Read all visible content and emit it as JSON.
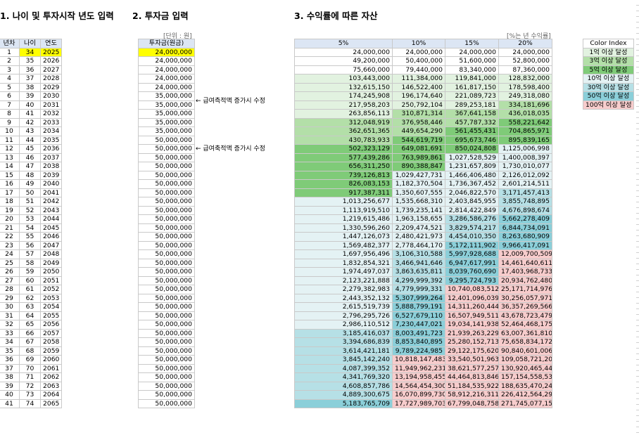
{
  "titles": {
    "t1": "1. 나이 및 투자시작 년도 입력",
    "t2": "2. 투자금 입력",
    "t3": "3. 수익률에 따른 자산"
  },
  "notes": {
    "unit": "[단위 : 원]",
    "rate": "[%는 년 수익률]"
  },
  "side_notes": {
    "n1": "← 급여측적액 증가시 수정",
    "n2": "← 급여축적액 증가시 수정"
  },
  "headers": {
    "col1": [
      "년차",
      "나이",
      "연도"
    ],
    "col2": "투자금(원금)",
    "col3": [
      "5%",
      "10%",
      "15%",
      "20%"
    ]
  },
  "rows": [
    [
      "1",
      "34",
      "2025",
      "24,000,000",
      "24,000,000",
      "24,000,000",
      "24,000,000",
      "24,000,000"
    ],
    [
      "2",
      "35",
      "2026",
      "24,000,000",
      "49,200,000",
      "50,400,000",
      "51,600,000",
      "52,800,000"
    ],
    [
      "3",
      "36",
      "2027",
      "24,000,000",
      "75,660,000",
      "79,440,000",
      "83,340,000",
      "87,360,000"
    ],
    [
      "4",
      "37",
      "2028",
      "24,000,000",
      "103,443,000",
      "111,384,000",
      "119,841,000",
      "128,832,000"
    ],
    [
      "5",
      "38",
      "2029",
      "24,000,000",
      "132,615,150",
      "146,522,400",
      "161,817,150",
      "178,598,400"
    ],
    [
      "6",
      "39",
      "2030",
      "35,000,000",
      "174,245,908",
      "196,174,640",
      "221,089,723",
      "249,318,080"
    ],
    [
      "7",
      "40",
      "2031",
      "35,000,000",
      "217,958,203",
      "250,792,104",
      "289,253,181",
      "334,181,696"
    ],
    [
      "8",
      "41",
      "2032",
      "35,000,000",
      "263,856,113",
      "310,871,314",
      "367,641,158",
      "436,018,035"
    ],
    [
      "9",
      "42",
      "2033",
      "35,000,000",
      "312,048,919",
      "376,958,446",
      "457,787,332",
      "558,221,642"
    ],
    [
      "10",
      "43",
      "2034",
      "35,000,000",
      "362,651,365",
      "449,654,290",
      "561,455,431",
      "704,865,971"
    ],
    [
      "11",
      "44",
      "2035",
      "50,000,000",
      "430,783,933",
      "544,619,719",
      "695,673,746",
      "895,839,165"
    ],
    [
      "12",
      "45",
      "2036",
      "50,000,000",
      "502,323,129",
      "649,081,691",
      "850,024,808",
      "1,125,006,998"
    ],
    [
      "13",
      "46",
      "2037",
      "50,000,000",
      "577,439,286",
      "763,989,861",
      "1,027,528,529",
      "1,400,008,397"
    ],
    [
      "14",
      "47",
      "2038",
      "50,000,000",
      "656,311,250",
      "890,388,847",
      "1,231,657,809",
      "1,730,010,077"
    ],
    [
      "15",
      "48",
      "2039",
      "50,000,000",
      "739,126,813",
      "1,029,427,731",
      "1,466,406,480",
      "2,126,012,092"
    ],
    [
      "16",
      "49",
      "2040",
      "50,000,000",
      "826,083,153",
      "1,182,370,504",
      "1,736,367,452",
      "2,601,214,511"
    ],
    [
      "17",
      "50",
      "2041",
      "50,000,000",
      "917,387,311",
      "1,350,607,555",
      "2,046,822,570",
      "3,171,457,413"
    ],
    [
      "18",
      "51",
      "2042",
      "50,000,000",
      "1,013,256,677",
      "1,535,668,310",
      "2,403,845,955",
      "3,855,748,895"
    ],
    [
      "19",
      "52",
      "2043",
      "50,000,000",
      "1,113,919,510",
      "1,739,235,141",
      "2,814,422,849",
      "4,676,898,674"
    ],
    [
      "20",
      "53",
      "2044",
      "50,000,000",
      "1,219,615,486",
      "1,963,158,655",
      "3,286,586,276",
      "5,662,278,409"
    ],
    [
      "21",
      "54",
      "2045",
      "50,000,000",
      "1,330,596,260",
      "2,209,474,521",
      "3,829,574,217",
      "6,844,734,091"
    ],
    [
      "22",
      "55",
      "2046",
      "50,000,000",
      "1,447,126,073",
      "2,480,421,973",
      "4,454,010,350",
      "8,263,680,909"
    ],
    [
      "23",
      "56",
      "2047",
      "50,000,000",
      "1,569,482,377",
      "2,778,464,170",
      "5,172,111,902",
      "9,966,417,091"
    ],
    [
      "24",
      "57",
      "2048",
      "50,000,000",
      "1,697,956,496",
      "3,106,310,588",
      "5,997,928,688",
      "12,009,700,509"
    ],
    [
      "25",
      "58",
      "2049",
      "50,000,000",
      "1,832,854,321",
      "3,466,941,646",
      "6,947,617,991",
      "14,461,640,611"
    ],
    [
      "26",
      "59",
      "2050",
      "50,000,000",
      "1,974,497,037",
      "3,863,635,811",
      "8,039,760,690",
      "17,403,968,733"
    ],
    [
      "27",
      "60",
      "2051",
      "50,000,000",
      "2,123,221,888",
      "4,299,999,392",
      "9,295,724,793",
      "20,934,762,480"
    ],
    [
      "28",
      "61",
      "2052",
      "50,000,000",
      "2,279,382,983",
      "4,779,999,331",
      "10,740,083,512",
      "25,171,714,976"
    ],
    [
      "29",
      "62",
      "2053",
      "50,000,000",
      "2,443,352,132",
      "5,307,999,264",
      "12,401,096,039",
      "30,256,057,971"
    ],
    [
      "30",
      "63",
      "2054",
      "50,000,000",
      "2,615,519,739",
      "5,888,799,191",
      "14,311,260,444",
      "36,357,269,566"
    ],
    [
      "31",
      "64",
      "2055",
      "50,000,000",
      "2,796,295,726",
      "6,527,679,110",
      "16,507,949,511",
      "43,678,723,479"
    ],
    [
      "32",
      "65",
      "2056",
      "50,000,000",
      "2,986,110,512",
      "7,230,447,021",
      "19,034,141,938",
      "52,464,468,175"
    ],
    [
      "33",
      "66",
      "2057",
      "50,000,000",
      "3,185,416,037",
      "8,003,491,723",
      "21,939,263,229",
      "63,007,361,810"
    ],
    [
      "34",
      "67",
      "2058",
      "50,000,000",
      "3,394,686,839",
      "8,853,840,895",
      "25,280,152,713",
      "75,658,834,172"
    ],
    [
      "35",
      "68",
      "2059",
      "50,000,000",
      "3,614,421,181",
      "9,789,224,985",
      "29,122,175,620",
      "90,840,601,006"
    ],
    [
      "36",
      "69",
      "2060",
      "50,000,000",
      "3,845,142,240",
      "10,818,147,483",
      "33,540,501,963",
      "109,058,721,207"
    ],
    [
      "37",
      "70",
      "2061",
      "50,000,000",
      "4,087,399,352",
      "11,949,962,231",
      "38,621,577,257",
      "130,920,465,448"
    ],
    [
      "38",
      "71",
      "2062",
      "50,000,000",
      "4,341,769,320",
      "13,194,958,455",
      "44,464,813,846",
      "157,154,558,538"
    ],
    [
      "39",
      "72",
      "2063",
      "50,000,000",
      "4,608,857,786",
      "14,564,454,300",
      "51,184,535,922",
      "188,635,470,246"
    ],
    [
      "40",
      "73",
      "2064",
      "50,000,000",
      "4,889,300,675",
      "16,070,899,730",
      "58,912,216,311",
      "226,412,564,295"
    ],
    [
      "41",
      "74",
      "2065",
      "50,000,000",
      "5,183,765,709",
      "17,727,989,703",
      "67,799,048,758",
      "271,745,077,154"
    ]
  ],
  "legend": {
    "title": "Color Index",
    "items": [
      {
        "label": "1억 이상 달성",
        "color": "#e2f2e0"
      },
      {
        "label": "3억 이상 달성",
        "color": "#b3dfa8"
      },
      {
        "label": "5억 이상 달성",
        "color": "#7fcb78"
      },
      {
        "label": "10억 이상 달성",
        "color": "#e4f2f4"
      },
      {
        "label": "30억 이상 달성",
        "color": "#b6e0e6"
      },
      {
        "label": "50억 이상 달성",
        "color": "#8bcfd9"
      },
      {
        "label": "100억 이상 달성",
        "color": "#f7cccc"
      }
    ]
  },
  "colors": {
    "input_highlight": "#ffff00",
    "header_fill": "#dce6f4"
  }
}
